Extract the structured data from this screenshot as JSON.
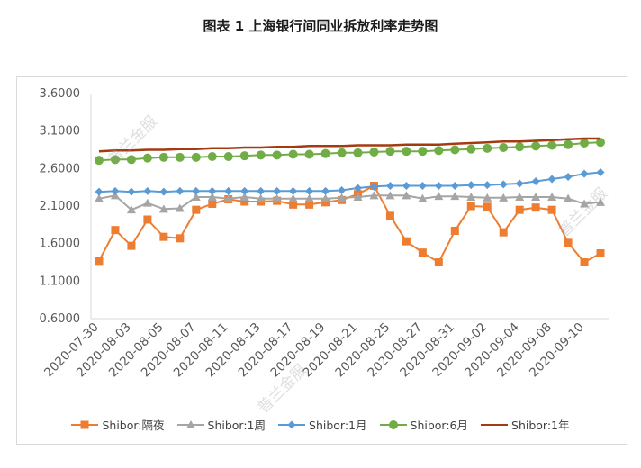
{
  "title": "图表 1  上海银行间同业拆放利率走势图",
  "watermark": "普兰金服",
  "colors": {
    "overnight": "#ED7D31",
    "week1": "#A5A5A5",
    "month1": "#5B9BD5",
    "month6": "#70AD47",
    "year1": "#A43B10",
    "axis": "#d9d9d9",
    "text": "#595959"
  },
  "chart_data": {
    "type": "line",
    "title": "图表 1  上海银行间同业拆放利率走势图",
    "ylim": [
      0.6,
      3.6
    ],
    "yticks": [
      "0.6000",
      "1.1000",
      "1.6000",
      "2.1000",
      "2.6000",
      "3.1000",
      "3.6000"
    ],
    "ytick_values": [
      0.6,
      1.1,
      1.6,
      2.1,
      2.6,
      3.1,
      3.6
    ],
    "x_tick_labels": [
      "2020-07-30",
      "2020-08-03",
      "2020-08-05",
      "2020-08-07",
      "2020-08-11",
      "2020-08-13",
      "2020-08-17",
      "2020-08-19",
      "2020-08-21",
      "2020-08-25",
      "2020-08-27",
      "2020-08-31",
      "2020-09-02",
      "2020-09-04",
      "2020-09-08",
      "2020-09-10"
    ],
    "grid": false,
    "legend_position": "bottom",
    "series": [
      {
        "name": "Shibor:隔夜",
        "key": "overnight",
        "marker": "square",
        "values": [
          1.37,
          1.78,
          1.57,
          1.92,
          1.69,
          1.67,
          2.05,
          2.13,
          2.19,
          2.16,
          2.16,
          2.17,
          2.12,
          2.12,
          2.15,
          2.18,
          2.26,
          2.37,
          1.97,
          1.63,
          1.48,
          1.35,
          1.77,
          2.1,
          2.09,
          1.75,
          2.05,
          2.08,
          2.05,
          1.61,
          1.35,
          1.47
        ]
      },
      {
        "name": "Shibor:1周",
        "key": "week1",
        "marker": "triangle",
        "values": [
          2.2,
          2.24,
          2.05,
          2.14,
          2.06,
          2.07,
          2.22,
          2.22,
          2.2,
          2.22,
          2.2,
          2.2,
          2.2,
          2.2,
          2.2,
          2.21,
          2.22,
          2.24,
          2.24,
          2.24,
          2.2,
          2.23,
          2.23,
          2.22,
          2.21,
          2.21,
          2.22,
          2.22,
          2.22,
          2.2,
          2.13,
          2.15
        ]
      },
      {
        "name": "Shibor:1月",
        "key": "month1",
        "marker": "diamond",
        "values": [
          2.29,
          2.3,
          2.29,
          2.3,
          2.29,
          2.3,
          2.3,
          2.3,
          2.3,
          2.3,
          2.3,
          2.3,
          2.3,
          2.3,
          2.3,
          2.31,
          2.34,
          2.36,
          2.37,
          2.37,
          2.37,
          2.37,
          2.37,
          2.38,
          2.38,
          2.39,
          2.4,
          2.43,
          2.46,
          2.49,
          2.53,
          2.55
        ]
      },
      {
        "name": "Shibor:6月",
        "key": "month6",
        "marker": "circle",
        "values": [
          2.71,
          2.72,
          2.72,
          2.74,
          2.75,
          2.75,
          2.75,
          2.76,
          2.76,
          2.77,
          2.78,
          2.78,
          2.79,
          2.79,
          2.8,
          2.81,
          2.81,
          2.82,
          2.83,
          2.83,
          2.83,
          2.84,
          2.85,
          2.86,
          2.87,
          2.88,
          2.89,
          2.9,
          2.91,
          2.92,
          2.94,
          2.95
        ]
      },
      {
        "name": "Shibor:1年",
        "key": "year1",
        "marker": "none",
        "values": [
          2.83,
          2.84,
          2.84,
          2.85,
          2.85,
          2.86,
          2.86,
          2.87,
          2.87,
          2.88,
          2.88,
          2.89,
          2.89,
          2.9,
          2.9,
          2.9,
          2.91,
          2.91,
          2.91,
          2.92,
          2.92,
          2.92,
          2.93,
          2.94,
          2.95,
          2.96,
          2.96,
          2.97,
          2.98,
          2.99,
          3.0,
          3.0
        ]
      }
    ]
  }
}
